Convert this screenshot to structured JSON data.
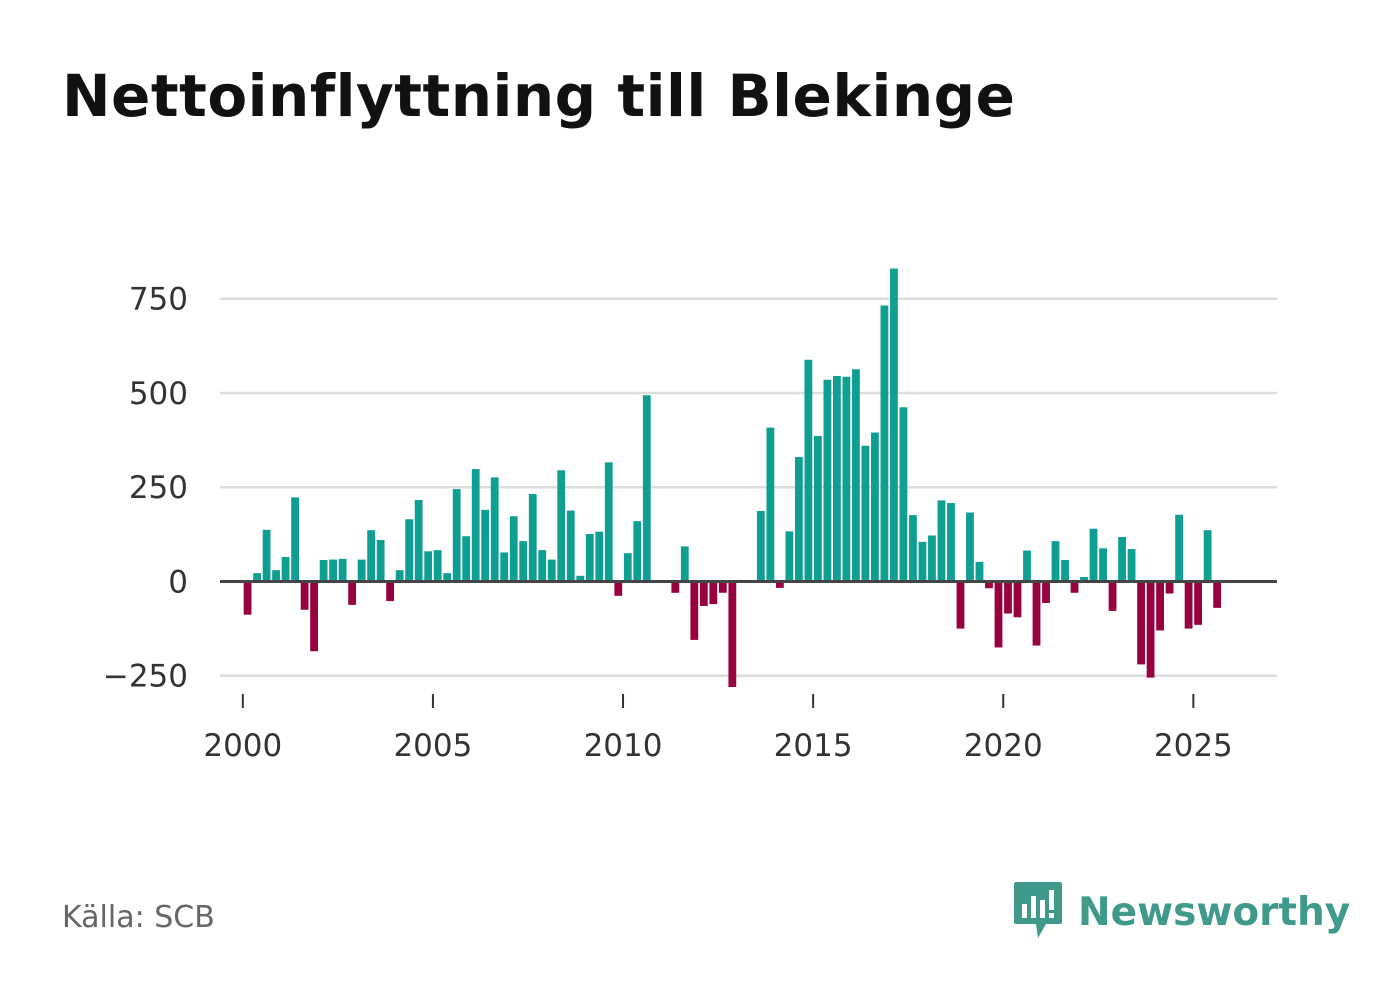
{
  "title": "Nettoinflyttning till Blekinge",
  "source": "Källa: SCB",
  "brand": {
    "name": "Newsworthy",
    "icon": "newsworthy-logo-icon"
  },
  "colors": {
    "positive": "#0f9e92",
    "negative": "#99003f",
    "grid": "#dddddd",
    "zero_line": "#444444",
    "brand": "#3f9a8c"
  },
  "chart_data": {
    "type": "bar",
    "title": "Nettoinflyttning till Blekinge",
    "xlabel": "",
    "ylabel": "",
    "frequency": "quarterly",
    "start": [
      2000,
      1
    ],
    "values": [
      -88,
      22,
      137,
      30,
      65,
      223,
      -75,
      -185,
      57,
      58,
      60,
      -62,
      58,
      136,
      110,
      -52,
      30,
      165,
      216,
      80,
      83,
      22,
      245,
      120,
      298,
      190,
      276,
      77,
      173,
      107,
      232,
      83,
      58,
      295,
      188,
      15,
      126,
      132,
      316,
      -38,
      75,
      160,
      494,
      0,
      0,
      -30,
      93,
      -155,
      -65,
      -60,
      -30,
      -280,
      0,
      0,
      187,
      408,
      -17,
      133,
      330,
      588,
      386,
      535,
      545,
      543,
      563,
      360,
      395,
      732,
      830,
      462,
      176,
      105,
      122,
      215,
      208,
      -125,
      183,
      52,
      -18,
      -175,
      -85,
      -95,
      82,
      -170,
      -57,
      107,
      57,
      -30,
      12,
      140,
      88,
      -78,
      118,
      86,
      -220,
      -255,
      -130,
      -32,
      177,
      -125,
      -115,
      136,
      -70
    ],
    "x_ticks": [
      "2000",
      "2005",
      "2010",
      "2015",
      "2020",
      "2025"
    ],
    "y_ticks": [
      -250,
      0,
      250,
      500,
      750
    ],
    "y_tick_labels": [
      "−250",
      "0",
      "250",
      "500",
      "750"
    ],
    "ylim": [
      -325,
      850
    ],
    "xlim": [
      1999.4,
      2027.2
    ],
    "grid": true
  }
}
